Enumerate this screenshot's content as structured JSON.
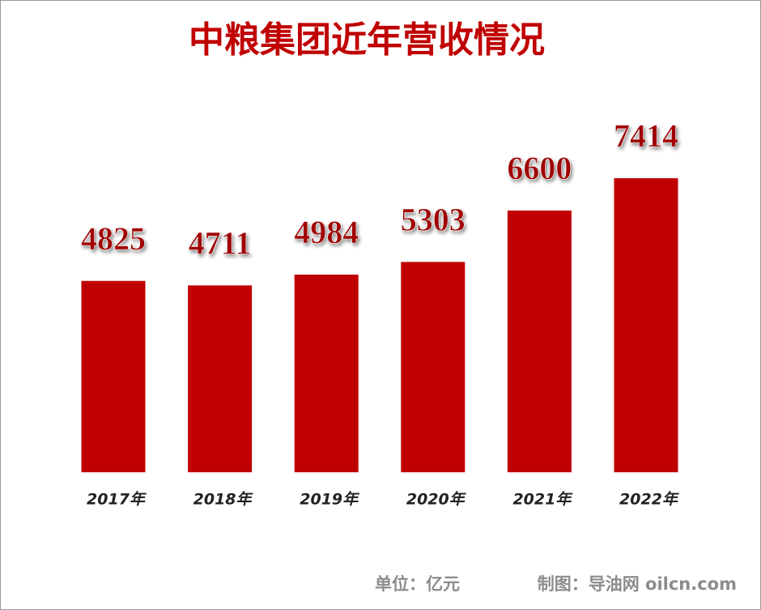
{
  "chart_data": {
    "type": "bar",
    "title": "中粮集团近年营收情况",
    "categories": [
      "2017年",
      "2018年",
      "2019年",
      "2020年",
      "2021年",
      "2022年"
    ],
    "values": [
      4825,
      4711,
      4984,
      5303,
      6600,
      7414
    ],
    "color": "#c00000",
    "unit_note": "单位：亿元",
    "source_note": "制图：导油网 oilcn.com"
  }
}
